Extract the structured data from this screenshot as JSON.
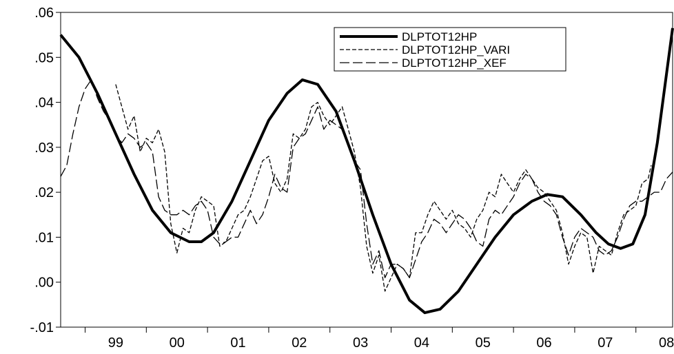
{
  "chart_data": {
    "type": "line",
    "title": "",
    "xlabel": "",
    "ylabel": "",
    "ylim": [
      -0.01,
      0.06
    ],
    "yticks": [
      -0.01,
      0.0,
      0.01,
      0.02,
      0.03,
      0.04,
      0.05,
      0.06
    ],
    "ytick_labels": [
      "-.01",
      ".00",
      ".01",
      ".02",
      ".03",
      ".04",
      ".05",
      ".06"
    ],
    "xlim": [
      1998.6,
      2008.6
    ],
    "xtick_labels": [
      {
        "x": 1999.5,
        "label": "99"
      },
      {
        "x": 2000.5,
        "label": "00"
      },
      {
        "x": 2001.5,
        "label": "01"
      },
      {
        "x": 2002.5,
        "label": "02"
      },
      {
        "x": 2003.5,
        "label": "03"
      },
      {
        "x": 2004.5,
        "label": "04"
      },
      {
        "x": 2005.5,
        "label": "05"
      },
      {
        "x": 2006.5,
        "label": "06"
      },
      {
        "x": 2007.5,
        "label": "07"
      },
      {
        "x": 2008.5,
        "label": "08"
      }
    ],
    "year_boundaries": [
      1999,
      2000,
      2001,
      2002,
      2003,
      2004,
      2005,
      2006,
      2007,
      2008
    ],
    "grid": false,
    "legend_position": "top-right",
    "series": [
      {
        "name": "DLPTOT12HP",
        "style": "solid-thick",
        "color": "#000000",
        "points": [
          [
            1998.6,
            0.055
          ],
          [
            1998.9,
            0.05
          ],
          [
            1999.2,
            0.042
          ],
          [
            1999.5,
            0.033
          ],
          [
            1999.8,
            0.024
          ],
          [
            2000.1,
            0.016
          ],
          [
            2000.4,
            0.011
          ],
          [
            2000.7,
            0.009
          ],
          [
            2000.9,
            0.009
          ],
          [
            2001.1,
            0.011
          ],
          [
            2001.4,
            0.018
          ],
          [
            2001.7,
            0.027
          ],
          [
            2002.0,
            0.036
          ],
          [
            2002.3,
            0.042
          ],
          [
            2002.55,
            0.045
          ],
          [
            2002.8,
            0.044
          ],
          [
            2003.1,
            0.038
          ],
          [
            2003.4,
            0.027
          ],
          [
            2003.7,
            0.015
          ],
          [
            2004.0,
            0.004
          ],
          [
            2004.3,
            -0.004
          ],
          [
            2004.55,
            -0.0068
          ],
          [
            2004.8,
            -0.006
          ],
          [
            2005.1,
            -0.002
          ],
          [
            2005.4,
            0.004
          ],
          [
            2005.7,
            0.01
          ],
          [
            2006.0,
            0.015
          ],
          [
            2006.3,
            0.018
          ],
          [
            2006.55,
            0.0195
          ],
          [
            2006.8,
            0.019
          ],
          [
            2007.1,
            0.015
          ],
          [
            2007.35,
            0.011
          ],
          [
            2007.55,
            0.0085
          ],
          [
            2007.75,
            0.0075
          ],
          [
            2007.95,
            0.0085
          ],
          [
            2008.15,
            0.015
          ],
          [
            2008.35,
            0.031
          ],
          [
            2008.6,
            0.0565
          ]
        ]
      },
      {
        "name": "DLPTOT12HP_VARI",
        "style": "short-dash",
        "color": "#000000",
        "points": [
          [
            1999.5,
            0.044
          ],
          [
            1999.6,
            0.039
          ],
          [
            1999.7,
            0.034
          ],
          [
            1999.8,
            0.037
          ],
          [
            1999.9,
            0.029
          ],
          [
            2000.0,
            0.032
          ],
          [
            2000.1,
            0.031
          ],
          [
            2000.2,
            0.034
          ],
          [
            2000.3,
            0.029
          ],
          [
            2000.4,
            0.013
          ],
          [
            2000.5,
            0.0065
          ],
          [
            2000.6,
            0.012
          ],
          [
            2000.7,
            0.011
          ],
          [
            2000.8,
            0.016
          ],
          [
            2000.9,
            0.019
          ],
          [
            2001.0,
            0.018
          ],
          [
            2001.1,
            0.017
          ],
          [
            2001.2,
            0.008
          ],
          [
            2001.3,
            0.009
          ],
          [
            2001.4,
            0.012
          ],
          [
            2001.5,
            0.015
          ],
          [
            2001.6,
            0.016
          ],
          [
            2001.7,
            0.019
          ],
          [
            2001.8,
            0.023
          ],
          [
            2001.9,
            0.027
          ],
          [
            2002.0,
            0.028
          ],
          [
            2002.1,
            0.022
          ],
          [
            2002.2,
            0.02
          ],
          [
            2002.3,
            0.023
          ],
          [
            2002.4,
            0.033
          ],
          [
            2002.5,
            0.032
          ],
          [
            2002.6,
            0.034
          ],
          [
            2002.7,
            0.039
          ],
          [
            2002.8,
            0.04
          ],
          [
            2002.9,
            0.037
          ],
          [
            2003.0,
            0.035
          ],
          [
            2003.1,
            0.037
          ],
          [
            2003.2,
            0.039
          ],
          [
            2003.3,
            0.034
          ],
          [
            2003.4,
            0.029
          ],
          [
            2003.5,
            0.021
          ],
          [
            2003.6,
            0.008
          ],
          [
            2003.7,
            0.002
          ],
          [
            2003.8,
            0.006
          ],
          [
            2003.9,
            -0.002
          ],
          [
            2004.0,
            0.001
          ],
          [
            2004.1,
            0.004
          ],
          [
            2004.2,
            0.003
          ],
          [
            2004.3,
            0.001
          ],
          [
            2004.4,
            0.011
          ],
          [
            2004.5,
            0.011
          ],
          [
            2004.6,
            0.015
          ],
          [
            2004.7,
            0.018
          ],
          [
            2004.8,
            0.016
          ],
          [
            2004.9,
            0.014
          ],
          [
            2005.0,
            0.016
          ],
          [
            2005.1,
            0.013
          ],
          [
            2005.2,
            0.012
          ],
          [
            2005.3,
            0.01
          ],
          [
            2005.4,
            0.014
          ],
          [
            2005.5,
            0.016
          ],
          [
            2005.6,
            0.02
          ],
          [
            2005.7,
            0.019
          ],
          [
            2005.8,
            0.024
          ],
          [
            2005.9,
            0.022
          ],
          [
            2006.0,
            0.02
          ],
          [
            2006.1,
            0.023
          ],
          [
            2006.2,
            0.025
          ],
          [
            2006.3,
            0.023
          ],
          [
            2006.4,
            0.021
          ],
          [
            2006.5,
            0.02
          ],
          [
            2006.6,
            0.018
          ],
          [
            2006.7,
            0.016
          ],
          [
            2006.8,
            0.011
          ],
          [
            2006.9,
            0.004
          ],
          [
            2007.0,
            0.008
          ],
          [
            2007.1,
            0.011
          ],
          [
            2007.2,
            0.01
          ],
          [
            2007.3,
            0.002
          ],
          [
            2007.4,
            0.008
          ],
          [
            2007.5,
            0.007
          ],
          [
            2007.6,
            0.006
          ],
          [
            2007.7,
            0.011
          ],
          [
            2007.8,
            0.015
          ],
          [
            2007.9,
            0.016
          ],
          [
            2008.0,
            0.017
          ],
          [
            2008.1,
            0.022
          ],
          [
            2008.2,
            0.023
          ],
          [
            2008.25,
            0.026
          ]
        ]
      },
      {
        "name": "DLPTOT12HP_XEF",
        "style": "long-dash",
        "color": "#000000",
        "points": [
          [
            1998.6,
            0.0235
          ],
          [
            1998.7,
            0.026
          ],
          [
            1998.8,
            0.033
          ],
          [
            1998.9,
            0.039
          ],
          [
            1999.0,
            0.043
          ],
          [
            1999.1,
            0.045
          ],
          [
            1999.2,
            0.041
          ],
          [
            1999.3,
            0.038
          ],
          [
            1999.4,
            0.036
          ],
          [
            1999.5,
            0.033
          ],
          [
            1999.6,
            0.031
          ],
          [
            1999.7,
            0.033
          ],
          [
            1999.8,
            0.032
          ],
          [
            1999.9,
            0.03
          ],
          [
            2000.0,
            0.031
          ],
          [
            2000.1,
            0.029
          ],
          [
            2000.2,
            0.019
          ],
          [
            2000.3,
            0.016
          ],
          [
            2000.4,
            0.015
          ],
          [
            2000.5,
            0.015
          ],
          [
            2000.6,
            0.016
          ],
          [
            2000.7,
            0.015
          ],
          [
            2000.8,
            0.017
          ],
          [
            2000.9,
            0.018
          ],
          [
            2001.0,
            0.016
          ],
          [
            2001.1,
            0.01
          ],
          [
            2001.2,
            0.0085
          ],
          [
            2001.3,
            0.009
          ],
          [
            2001.4,
            0.01
          ],
          [
            2001.5,
            0.01
          ],
          [
            2001.6,
            0.013
          ],
          [
            2001.7,
            0.016
          ],
          [
            2001.8,
            0.013
          ],
          [
            2001.9,
            0.015
          ],
          [
            2002.0,
            0.019
          ],
          [
            2002.1,
            0.024
          ],
          [
            2002.2,
            0.021
          ],
          [
            2002.3,
            0.02
          ],
          [
            2002.4,
            0.03
          ],
          [
            2002.5,
            0.032
          ],
          [
            2002.6,
            0.033
          ],
          [
            2002.7,
            0.036
          ],
          [
            2002.8,
            0.039
          ],
          [
            2002.9,
            0.034
          ],
          [
            2003.0,
            0.036
          ],
          [
            2003.1,
            0.035
          ],
          [
            2003.2,
            0.034
          ],
          [
            2003.3,
            0.031
          ],
          [
            2003.4,
            0.027
          ],
          [
            2003.5,
            0.025
          ],
          [
            2003.6,
            0.013
          ],
          [
            2003.7,
            0.004
          ],
          [
            2003.8,
            0.007
          ],
          [
            2003.9,
            0.001
          ],
          [
            2004.0,
            0.004
          ],
          [
            2004.1,
            0.004
          ],
          [
            2004.2,
            0.003
          ],
          [
            2004.3,
            0.001
          ],
          [
            2004.4,
            0.005
          ],
          [
            2004.5,
            0.009
          ],
          [
            2004.6,
            0.011
          ],
          [
            2004.7,
            0.014
          ],
          [
            2004.8,
            0.013
          ],
          [
            2004.9,
            0.011
          ],
          [
            2005.0,
            0.013
          ],
          [
            2005.1,
            0.015
          ],
          [
            2005.2,
            0.014
          ],
          [
            2005.3,
            0.012
          ],
          [
            2005.4,
            0.009
          ],
          [
            2005.5,
            0.008
          ],
          [
            2005.6,
            0.014
          ],
          [
            2005.7,
            0.016
          ],
          [
            2005.8,
            0.015
          ],
          [
            2005.9,
            0.017
          ],
          [
            2006.0,
            0.019
          ],
          [
            2006.1,
            0.022
          ],
          [
            2006.2,
            0.024
          ],
          [
            2006.3,
            0.023
          ],
          [
            2006.4,
            0.02
          ],
          [
            2006.5,
            0.018
          ],
          [
            2006.6,
            0.017
          ],
          [
            2006.7,
            0.015
          ],
          [
            2006.8,
            0.01
          ],
          [
            2006.9,
            0.006
          ],
          [
            2007.0,
            0.01
          ],
          [
            2007.1,
            0.012
          ],
          [
            2007.2,
            0.011
          ],
          [
            2007.3,
            0.01
          ],
          [
            2007.4,
            0.007
          ],
          [
            2007.5,
            0.006
          ],
          [
            2007.6,
            0.007
          ],
          [
            2007.7,
            0.01
          ],
          [
            2007.8,
            0.014
          ],
          [
            2007.9,
            0.017
          ],
          [
            2008.0,
            0.018
          ],
          [
            2008.1,
            0.018
          ],
          [
            2008.2,
            0.019
          ],
          [
            2008.3,
            0.02
          ],
          [
            2008.4,
            0.02
          ],
          [
            2008.5,
            0.023
          ],
          [
            2008.6,
            0.0245
          ]
        ]
      }
    ]
  }
}
